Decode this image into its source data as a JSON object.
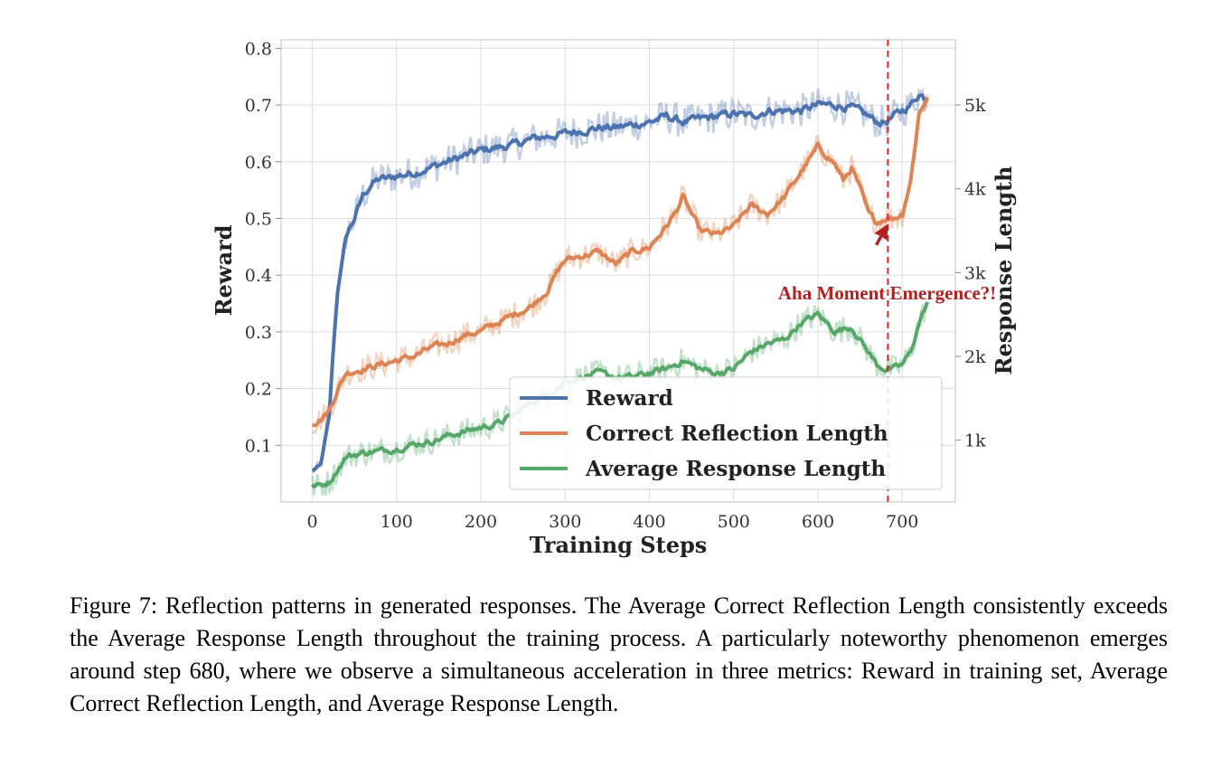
{
  "caption": "Figure 7: Reflection patterns in generated responses. The Average Correct Reflection Length consistently exceeds the Average Response Length throughout the training process. A particularly noteworthy phenomenon emerges around step 680, where we observe a simultaneous acceleration in three metrics: Reward in training set, Average Correct Reflection Length, and Average Response Length.",
  "chart_data": {
    "type": "line",
    "xlabel": "Training Steps",
    "ylabel": "Reward",
    "y2label": "Response Length",
    "xlim": [
      -37,
      763
    ],
    "ylim": [
      0.0,
      0.815
    ],
    "y2lim": [
      262,
      5778
    ],
    "xticks": [
      0,
      100,
      200,
      300,
      400,
      500,
      600,
      700
    ],
    "yticks": [
      0.1,
      0.2,
      0.3,
      0.4,
      0.5,
      0.6,
      0.7,
      0.8
    ],
    "y2ticks": [
      1000,
      2000,
      3000,
      4000,
      5000
    ],
    "y2ticklabels": [
      "1k",
      "2k",
      "3k",
      "4k",
      "5k"
    ],
    "grid": true,
    "legend_position": "lower-right",
    "vline": {
      "x": 683,
      "color": "#d62728",
      "style": "dashed"
    },
    "annotation": {
      "text": "Aha Moment Emergence?!",
      "point": [
        683,
        3580
      ],
      "text_position": [
        725,
        2660
      ]
    },
    "series": [
      {
        "name": "Reward",
        "axis": "left",
        "color": "#4c72b0",
        "x": [
          0,
          10,
          20,
          25,
          30,
          35,
          40,
          50,
          60,
          70,
          80,
          90,
          100,
          120,
          140,
          160,
          180,
          200,
          220,
          240,
          260,
          280,
          300,
          320,
          340,
          360,
          380,
          400,
          420,
          440,
          460,
          480,
          500,
          520,
          540,
          560,
          580,
          600,
          620,
          640,
          660,
          670,
          680,
          690,
          700,
          710,
          720,
          730
        ],
        "y": [
          0.055,
          0.065,
          0.15,
          0.27,
          0.37,
          0.42,
          0.47,
          0.5,
          0.54,
          0.56,
          0.57,
          0.57,
          0.575,
          0.58,
          0.59,
          0.6,
          0.61,
          0.62,
          0.625,
          0.63,
          0.64,
          0.645,
          0.65,
          0.655,
          0.66,
          0.66,
          0.665,
          0.67,
          0.68,
          0.67,
          0.675,
          0.68,
          0.685,
          0.68,
          0.69,
          0.69,
          0.69,
          0.7,
          0.7,
          0.695,
          0.68,
          0.67,
          0.67,
          0.68,
          0.69,
          0.7,
          0.72,
          0.71
        ]
      },
      {
        "name": "Correct Reflection Length",
        "axis": "right",
        "color": "#dd8452",
        "x": [
          0,
          10,
          20,
          30,
          40,
          60,
          80,
          100,
          120,
          140,
          160,
          180,
          200,
          220,
          240,
          260,
          280,
          290,
          300,
          320,
          340,
          360,
          380,
          400,
          420,
          430,
          440,
          460,
          480,
          500,
          520,
          540,
          560,
          580,
          600,
          620,
          630,
          640,
          650,
          660,
          670,
          680,
          690,
          700,
          710,
          720,
          730
        ],
        "y": [
          1200,
          1250,
          1350,
          1600,
          1800,
          1850,
          1900,
          1950,
          2000,
          2100,
          2150,
          2250,
          2300,
          2400,
          2500,
          2600,
          2800,
          3000,
          3150,
          3200,
          3250,
          3100,
          3250,
          3300,
          3550,
          3700,
          3900,
          3500,
          3450,
          3550,
          3800,
          3700,
          3900,
          4200,
          4500,
          4300,
          4100,
          4250,
          4000,
          3700,
          3600,
          3650,
          3650,
          3700,
          4100,
          4900,
          5100
        ]
      },
      {
        "name": "Average Response Length",
        "axis": "right",
        "color": "#55a868",
        "x": [
          0,
          10,
          20,
          30,
          40,
          60,
          80,
          100,
          120,
          140,
          160,
          180,
          200,
          220,
          240,
          260,
          280,
          300,
          320,
          340,
          360,
          380,
          400,
          420,
          440,
          460,
          480,
          500,
          520,
          540,
          560,
          580,
          600,
          620,
          640,
          660,
          670,
          680,
          690,
          700,
          710,
          720,
          730
        ],
        "y": [
          450,
          460,
          500,
          650,
          800,
          850,
          870,
          900,
          950,
          980,
          1050,
          1100,
          1150,
          1200,
          1300,
          1450,
          1550,
          1700,
          1750,
          1800,
          1750,
          1750,
          1800,
          1850,
          1950,
          1850,
          1800,
          1850,
          2050,
          2150,
          2200,
          2400,
          2500,
          2300,
          2350,
          2050,
          1900,
          1850,
          1850,
          1900,
          2050,
          2400,
          2650
        ]
      }
    ]
  }
}
